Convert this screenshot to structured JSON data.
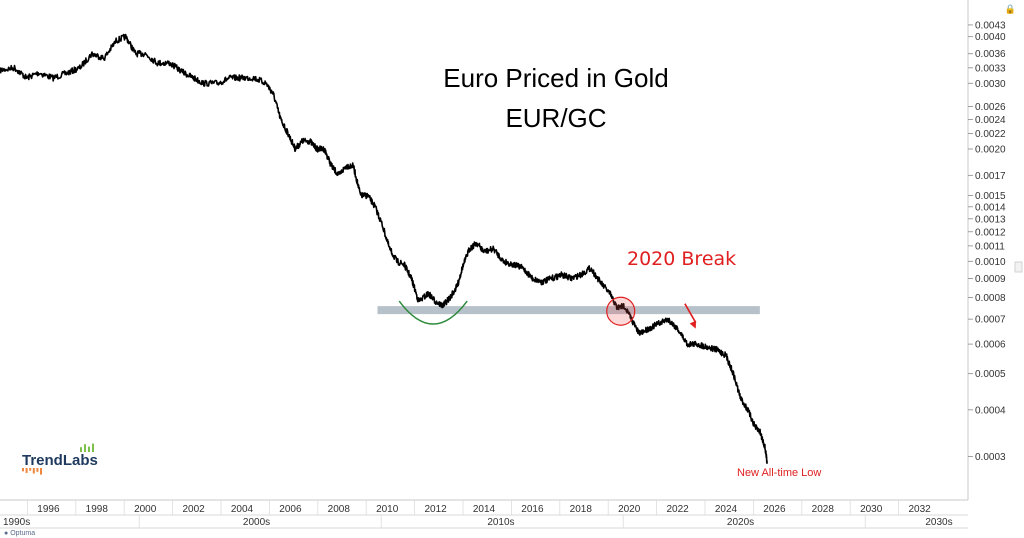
{
  "chart_data": {
    "type": "line",
    "title": "Euro Priced in Gold",
    "subtitle": "EUR/GC",
    "y_scale": "log",
    "ylim": [
      0.00025,
      0.0046
    ],
    "xlim": [
      1994.0,
      2034.0
    ],
    "grid": false,
    "y_ticks": [
      "0.0043",
      "0.0040",
      "0.0036",
      "0.0033",
      "0.0030",
      "0.0026",
      "0.0024",
      "0.0022",
      "0.0020",
      "0.0017",
      "0.0015",
      "0.0014",
      "0.0013",
      "0.0012",
      "0.0011",
      "0.0010",
      "0.0009",
      "0.0008",
      "0.0007",
      "0.0006",
      "0.0005",
      "0.0004",
      "0.0003"
    ],
    "x_ticks": [
      "1996",
      "1998",
      "2000",
      "2002",
      "2004",
      "2006",
      "2008",
      "2010",
      "2012",
      "2014",
      "2016",
      "2018",
      "2020",
      "2022",
      "2024",
      "2026",
      "2028",
      "2030",
      "2032"
    ],
    "decades": [
      "1990s",
      "2000s",
      "2010s",
      "2020s",
      "2030s"
    ],
    "series": [
      {
        "color": "#000000",
        "points": [
          [
            1994.0,
            0.00325
          ],
          [
            1994.6,
            0.0033
          ],
          [
            1995.1,
            0.0031
          ],
          [
            1995.6,
            0.0032
          ],
          [
            1996.2,
            0.0031
          ],
          [
            1996.8,
            0.0032
          ],
          [
            1997.3,
            0.0033
          ],
          [
            1997.8,
            0.0036
          ],
          [
            1998.3,
            0.0035
          ],
          [
            1998.8,
            0.0039
          ],
          [
            1999.2,
            0.004
          ],
          [
            1999.6,
            0.0036
          ],
          [
            2000.0,
            0.0036
          ],
          [
            2000.5,
            0.0034
          ],
          [
            2001.0,
            0.0034
          ],
          [
            2001.6,
            0.0032
          ],
          [
            2002.0,
            0.0031
          ],
          [
            2002.4,
            0.003
          ],
          [
            2003.0,
            0.003
          ],
          [
            2003.5,
            0.0031
          ],
          [
            2004.0,
            0.0031
          ],
          [
            2004.5,
            0.0031
          ],
          [
            2005.0,
            0.003
          ],
          [
            2005.3,
            0.0028
          ],
          [
            2005.6,
            0.0024
          ],
          [
            2005.9,
            0.0022
          ],
          [
            2006.2,
            0.002
          ],
          [
            2006.5,
            0.0021
          ],
          [
            2006.8,
            0.0021
          ],
          [
            2007.1,
            0.002
          ],
          [
            2007.4,
            0.002
          ],
          [
            2007.7,
            0.0018
          ],
          [
            2008.0,
            0.0017
          ],
          [
            2008.3,
            0.0018
          ],
          [
            2008.6,
            0.0018
          ],
          [
            2008.9,
            0.0015
          ],
          [
            2009.2,
            0.0015
          ],
          [
            2009.5,
            0.0014
          ],
          [
            2009.8,
            0.00125
          ],
          [
            2010.1,
            0.00108
          ],
          [
            2010.4,
            0.001
          ],
          [
            2010.7,
            0.00098
          ],
          [
            2011.0,
            0.0009
          ],
          [
            2011.3,
            0.00078
          ],
          [
            2011.7,
            0.00082
          ],
          [
            2012.0,
            0.00078
          ],
          [
            2012.3,
            0.00076
          ],
          [
            2012.6,
            0.0008
          ],
          [
            2012.9,
            0.00086
          ],
          [
            2013.1,
            0.00096
          ],
          [
            2013.4,
            0.00108
          ],
          [
            2013.7,
            0.00112
          ],
          [
            2014.0,
            0.00106
          ],
          [
            2014.4,
            0.00108
          ],
          [
            2014.8,
            0.001
          ],
          [
            2015.2,
            0.00098
          ],
          [
            2015.6,
            0.00096
          ],
          [
            2016.0,
            0.0009
          ],
          [
            2016.4,
            0.00088
          ],
          [
            2016.8,
            0.0009
          ],
          [
            2017.2,
            0.00092
          ],
          [
            2017.6,
            0.0009
          ],
          [
            2018.0,
            0.00092
          ],
          [
            2018.4,
            0.00096
          ],
          [
            2018.8,
            0.00088
          ],
          [
            2019.2,
            0.00082
          ],
          [
            2019.5,
            0.00075
          ],
          [
            2019.8,
            0.00076
          ],
          [
            2020.1,
            0.0007
          ],
          [
            2020.4,
            0.00064
          ],
          [
            2020.8,
            0.00066
          ],
          [
            2021.2,
            0.00068
          ],
          [
            2021.6,
            0.0007
          ],
          [
            2022.0,
            0.00066
          ],
          [
            2022.4,
            0.0006
          ],
          [
            2022.8,
            0.0006
          ],
          [
            2023.2,
            0.00059
          ],
          [
            2023.6,
            0.00058
          ],
          [
            2024.0,
            0.00056
          ],
          [
            2024.3,
            0.0005
          ],
          [
            2024.6,
            0.00043
          ],
          [
            2024.9,
            0.0004
          ],
          [
            2025.2,
            0.00036
          ],
          [
            2025.4,
            0.00035
          ],
          [
            2025.6,
            0.00032
          ],
          [
            2025.7,
            0.00029
          ]
        ]
      }
    ],
    "support_level": 0.00074,
    "annotations": {
      "break_label": "2020 Break",
      "low_label": "New All-time Low",
      "break_circle": {
        "x": 2019.65,
        "y": 0.000735
      },
      "arrow": {
        "from": [
          2022.3,
          0.00077
        ],
        "to": [
          2022.75,
          0.00066
        ]
      },
      "smile": {
        "x": 2011.9,
        "y": 0.000745
      }
    },
    "colors": {
      "line": "#000000",
      "support_band": "#b7c1ca",
      "annotation": "#e02020",
      "smile": "#2e8b3c",
      "logo_text": "#1f3a5f",
      "logo_bars_orange": "#f0873a",
      "logo_bars_green": "#7cc04a"
    },
    "logo": {
      "text": "TrendLabs"
    }
  },
  "footer": {
    "brand": "Optuma",
    "lock_icon": "lock-icon"
  }
}
